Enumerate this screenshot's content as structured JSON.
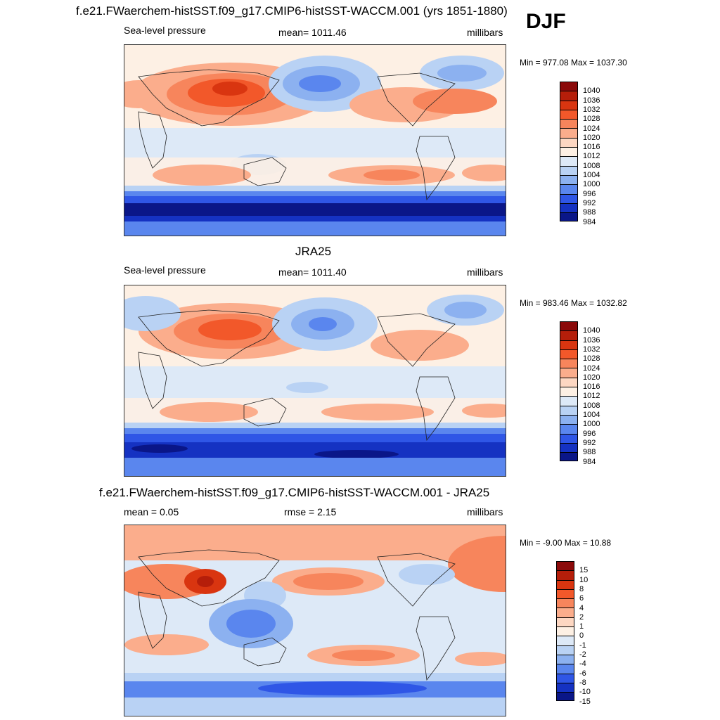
{
  "header": {
    "title": "f.e21.FWaerchem-histSST.f09_g17.CMIP6-histSST-WACCM.001 (yrs 1851-1880)",
    "season": "DJF"
  },
  "panels": [
    {
      "left_label": "Sea-level pressure",
      "center_label": "mean= 1011.46",
      "right_label": "millibars",
      "minmax": "Min = 977.08 Max = 1037.30",
      "colorbar_labels": [
        "1040",
        "1036",
        "1032",
        "1028",
        "1024",
        "1020",
        "1016",
        "1012",
        "1008",
        "1004",
        "1000",
        "996",
        "992",
        "988",
        "984"
      ]
    },
    {
      "title": "JRA25",
      "left_label": "Sea-level pressure",
      "center_label": "mean= 1011.40",
      "right_label": "millibars",
      "minmax": "Min = 983.46 Max = 1032.82",
      "colorbar_labels": [
        "1040",
        "1036",
        "1032",
        "1028",
        "1024",
        "1020",
        "1016",
        "1012",
        "1008",
        "1004",
        "1000",
        "996",
        "992",
        "988",
        "984"
      ]
    },
    {
      "title": "f.e21.FWaerchem-histSST.f09_g17.CMIP6-histSST-WACCM.001 - JRA25",
      "left_label": "mean =   0.05",
      "center_label": "rmse =   2.15",
      "right_label": "millibars",
      "minmax": "Min =  -9.00 Max =  10.88",
      "colorbar_labels": [
        "15",
        "10",
        "8",
        "6",
        "4",
        "2",
        "1",
        "0",
        "-1",
        "-2",
        "-4",
        "-6",
        "-8",
        "-10",
        "-15"
      ]
    }
  ],
  "colors": {
    "palette": [
      "#8b0a0a",
      "#b51e0a",
      "#d93510",
      "#f2582a",
      "#f7855c",
      "#fbad8c",
      "#fdd7c2",
      "#fdf0e4",
      "#dde9f7",
      "#b9d2f4",
      "#8cb1f0",
      "#5a86ee",
      "#2f56e6",
      "#1532c2",
      "#0a1688"
    ]
  }
}
